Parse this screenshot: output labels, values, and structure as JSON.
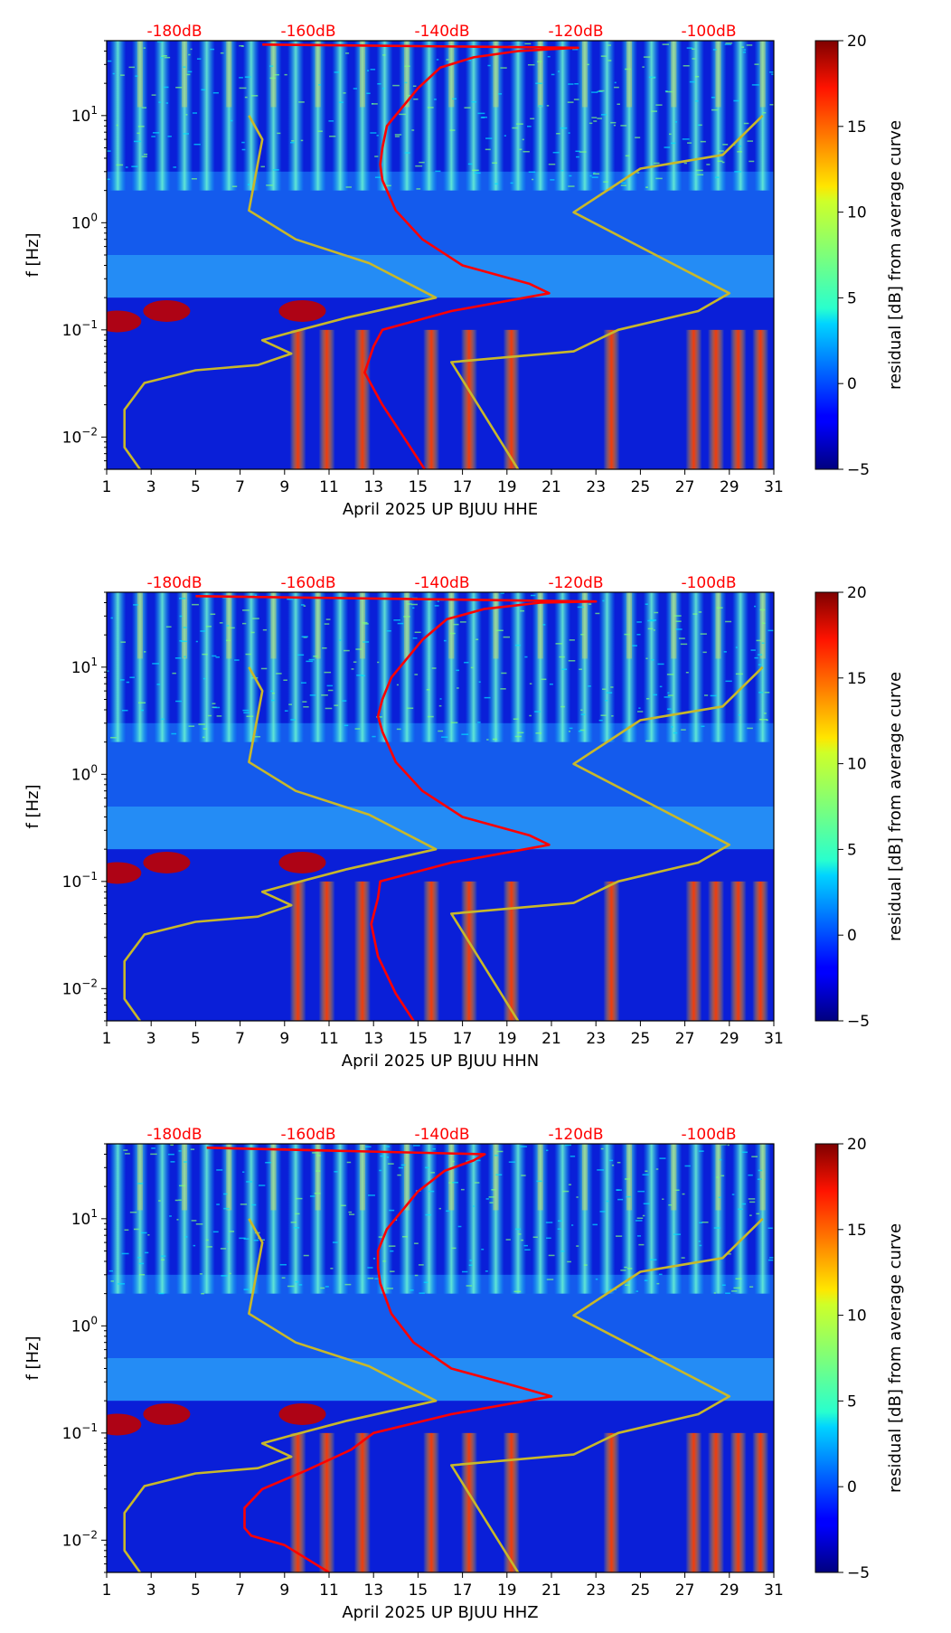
{
  "chart_data": [
    {
      "type": "heatmap",
      "title": "",
      "xlabel": "April 2025 UP BJUU  HHE",
      "ylabel": "f [Hz]",
      "x_ticks": [
        "1",
        "3",
        "5",
        "7",
        "9",
        "11",
        "13",
        "15",
        "17",
        "19",
        "21",
        "23",
        "25",
        "27",
        "29",
        "31"
      ],
      "xlim": [
        1,
        31
      ],
      "ylim": [
        0.005,
        50
      ],
      "y_ticks": [
        {
          "value": 0.01,
          "label": "10",
          "exp": "−2"
        },
        {
          "value": 0.1,
          "label": "10",
          "exp": "−1"
        },
        {
          "value": 1,
          "label": "10",
          "exp": "0"
        },
        {
          "value": 10,
          "label": "10",
          "exp": "1"
        }
      ],
      "top_axis_labels": [
        "-180dB",
        "-160dB",
        "-140dB",
        "-120dB",
        "-100dB"
      ],
      "colorbar": {
        "label": "residual [dB] from average curve",
        "ticks": [
          "−5",
          "0",
          "5",
          "10",
          "15",
          "20"
        ],
        "range": [
          -5,
          20
        ]
      },
      "series": [
        {
          "name": "average PSD (red)",
          "color": "#ff0000",
          "points": [
            [
              15.3,
              0.005
            ],
            [
              14.5,
              0.009
            ],
            [
              13.4,
              0.02
            ],
            [
              12.6,
              0.04
            ],
            [
              13.0,
              0.07
            ],
            [
              13.4,
              0.1
            ],
            [
              16.5,
              0.15
            ],
            [
              20.9,
              0.22
            ],
            [
              20.0,
              0.27
            ],
            [
              17.0,
              0.4
            ],
            [
              15.2,
              0.7
            ],
            [
              14.0,
              1.3
            ],
            [
              13.4,
              2.5
            ],
            [
              13.3,
              3.5
            ],
            [
              13.4,
              5
            ],
            [
              13.6,
              8
            ],
            [
              14.3,
              12
            ],
            [
              15.0,
              18
            ],
            [
              16.0,
              28
            ],
            [
              17.5,
              35
            ],
            [
              19.5,
              40
            ],
            [
              22.2,
              43
            ],
            [
              8.0,
              46
            ]
          ]
        },
        {
          "name": "NLNM (yellow)",
          "color": "#c8b82a",
          "points": [
            [
              2.5,
              0.005
            ],
            [
              1.8,
              0.008
            ],
            [
              1.8,
              0.018
            ],
            [
              2.7,
              0.032
            ],
            [
              5.0,
              0.042
            ],
            [
              7.8,
              0.047
            ],
            [
              9.3,
              0.06
            ],
            [
              8.0,
              0.08
            ],
            [
              9.3,
              0.095
            ],
            [
              11.8,
              0.13
            ],
            [
              15.8,
              0.2
            ],
            [
              12.8,
              0.42
            ],
            [
              9.5,
              0.7
            ],
            [
              7.4,
              1.3
            ],
            [
              8.0,
              6
            ],
            [
              7.4,
              10
            ]
          ]
        },
        {
          "name": "NHNM (yellow)",
          "color": "#c8b82a",
          "points": [
            [
              19.5,
              0.005
            ],
            [
              16.5,
              0.05
            ],
            [
              22.0,
              0.063
            ],
            [
              24.0,
              0.1
            ],
            [
              27.6,
              0.15
            ],
            [
              29.0,
              0.22
            ],
            [
              22.0,
              1.25
            ],
            [
              25.0,
              3.2
            ],
            [
              28.7,
              4.3
            ],
            [
              30.5,
              10
            ]
          ]
        }
      ]
    },
    {
      "type": "heatmap",
      "title": "",
      "xlabel": "April 2025 UP BJUU  HHN",
      "ylabel": "f [Hz]",
      "x_ticks": [
        "1",
        "3",
        "5",
        "7",
        "9",
        "11",
        "13",
        "15",
        "17",
        "19",
        "21",
        "23",
        "25",
        "27",
        "29",
        "31"
      ],
      "xlim": [
        1,
        31
      ],
      "ylim": [
        0.005,
        50
      ],
      "y_ticks": [
        {
          "value": 0.01,
          "label": "10",
          "exp": "−2"
        },
        {
          "value": 0.1,
          "label": "10",
          "exp": "−1"
        },
        {
          "value": 1,
          "label": "10",
          "exp": "0"
        },
        {
          "value": 10,
          "label": "10",
          "exp": "1"
        }
      ],
      "top_axis_labels": [
        "-180dB",
        "-160dB",
        "-140dB",
        "-120dB",
        "-100dB"
      ],
      "colorbar": {
        "label": "residual [dB] from average curve",
        "ticks": [
          "−5",
          "0",
          "5",
          "10",
          "15",
          "20"
        ],
        "range": [
          -5,
          20
        ]
      },
      "series": [
        {
          "name": "average PSD (red)",
          "color": "#ff0000",
          "points": [
            [
              14.8,
              0.005
            ],
            [
              14.0,
              0.009
            ],
            [
              13.2,
              0.02
            ],
            [
              12.9,
              0.04
            ],
            [
              13.2,
              0.07
            ],
            [
              13.3,
              0.1
            ],
            [
              16.5,
              0.15
            ],
            [
              20.9,
              0.22
            ],
            [
              20.0,
              0.27
            ],
            [
              17.0,
              0.4
            ],
            [
              15.2,
              0.7
            ],
            [
              14.0,
              1.3
            ],
            [
              13.4,
              2.5
            ],
            [
              13.2,
              3.5
            ],
            [
              13.4,
              5
            ],
            [
              13.8,
              8
            ],
            [
              14.5,
              12
            ],
            [
              15.2,
              18
            ],
            [
              16.3,
              28
            ],
            [
              18.0,
              35
            ],
            [
              20.5,
              40
            ],
            [
              23.0,
              41
            ],
            [
              5.0,
              46
            ]
          ]
        },
        {
          "name": "NLNM (yellow)",
          "color": "#c8b82a",
          "points": [
            [
              2.5,
              0.005
            ],
            [
              1.8,
              0.008
            ],
            [
              1.8,
              0.018
            ],
            [
              2.7,
              0.032
            ],
            [
              5.0,
              0.042
            ],
            [
              7.8,
              0.047
            ],
            [
              9.3,
              0.06
            ],
            [
              8.0,
              0.08
            ],
            [
              9.3,
              0.095
            ],
            [
              11.8,
              0.13
            ],
            [
              15.8,
              0.2
            ],
            [
              12.8,
              0.42
            ],
            [
              9.5,
              0.7
            ],
            [
              7.4,
              1.3
            ],
            [
              8.0,
              6
            ],
            [
              7.4,
              10
            ]
          ]
        },
        {
          "name": "NHNM (yellow)",
          "color": "#c8b82a",
          "points": [
            [
              19.5,
              0.005
            ],
            [
              16.5,
              0.05
            ],
            [
              22.0,
              0.063
            ],
            [
              24.0,
              0.1
            ],
            [
              27.6,
              0.15
            ],
            [
              29.0,
              0.22
            ],
            [
              22.0,
              1.25
            ],
            [
              25.0,
              3.2
            ],
            [
              28.7,
              4.3
            ],
            [
              30.5,
              10
            ]
          ]
        }
      ]
    },
    {
      "type": "heatmap",
      "title": "",
      "xlabel": "April 2025 UP BJUU  HHZ",
      "ylabel": "f [Hz]",
      "x_ticks": [
        "1",
        "3",
        "5",
        "7",
        "9",
        "11",
        "13",
        "15",
        "17",
        "19",
        "21",
        "23",
        "25",
        "27",
        "29",
        "31"
      ],
      "xlim": [
        1,
        31
      ],
      "ylim": [
        0.005,
        50
      ],
      "y_ticks": [
        {
          "value": 0.01,
          "label": "10",
          "exp": "−2"
        },
        {
          "value": 0.1,
          "label": "10",
          "exp": "−1"
        },
        {
          "value": 1,
          "label": "10",
          "exp": "0"
        },
        {
          "value": 10,
          "label": "10",
          "exp": "1"
        }
      ],
      "top_axis_labels": [
        "-180dB",
        "-160dB",
        "-140dB",
        "-120dB",
        "-100dB"
      ],
      "colorbar": {
        "label": "residual [dB] from average curve",
        "ticks": [
          "−5",
          "0",
          "5",
          "10",
          "15",
          "20"
        ],
        "range": [
          -5,
          20
        ]
      },
      "series": [
        {
          "name": "average PSD (red)",
          "color": "#ff0000",
          "points": [
            [
              11.0,
              0.005
            ],
            [
              9.0,
              0.009
            ],
            [
              7.5,
              0.011
            ],
            [
              7.2,
              0.013
            ],
            [
              7.2,
              0.02
            ],
            [
              8.0,
              0.03
            ],
            [
              10.0,
              0.045
            ],
            [
              12.0,
              0.07
            ],
            [
              13.0,
              0.1
            ],
            [
              16.5,
              0.15
            ],
            [
              21.0,
              0.22
            ],
            [
              19.5,
              0.27
            ],
            [
              16.5,
              0.4
            ],
            [
              14.8,
              0.7
            ],
            [
              13.8,
              1.3
            ],
            [
              13.3,
              2.5
            ],
            [
              13.2,
              3.5
            ],
            [
              13.2,
              5
            ],
            [
              13.6,
              8
            ],
            [
              14.3,
              12
            ],
            [
              15.0,
              18
            ],
            [
              16.2,
              28
            ],
            [
              17.5,
              35
            ],
            [
              18.0,
              40
            ],
            [
              5.5,
              46
            ]
          ]
        },
        {
          "name": "NLNM (yellow)",
          "color": "#c8b82a",
          "points": [
            [
              2.5,
              0.005
            ],
            [
              1.8,
              0.008
            ],
            [
              1.8,
              0.018
            ],
            [
              2.7,
              0.032
            ],
            [
              5.0,
              0.042
            ],
            [
              7.8,
              0.047
            ],
            [
              9.3,
              0.06
            ],
            [
              8.0,
              0.08
            ],
            [
              9.3,
              0.095
            ],
            [
              11.8,
              0.13
            ],
            [
              15.8,
              0.2
            ],
            [
              12.8,
              0.42
            ],
            [
              9.5,
              0.7
            ],
            [
              7.4,
              1.3
            ],
            [
              8.0,
              6
            ],
            [
              7.4,
              10
            ]
          ]
        },
        {
          "name": "NHNM (yellow)",
          "color": "#c8b82a",
          "points": [
            [
              19.5,
              0.005
            ],
            [
              16.5,
              0.05
            ],
            [
              22.0,
              0.063
            ],
            [
              24.0,
              0.1
            ],
            [
              27.6,
              0.15
            ],
            [
              29.0,
              0.22
            ],
            [
              22.0,
              1.25
            ],
            [
              25.0,
              3.2
            ],
            [
              28.7,
              4.3
            ],
            [
              30.5,
              10
            ]
          ]
        }
      ]
    }
  ]
}
